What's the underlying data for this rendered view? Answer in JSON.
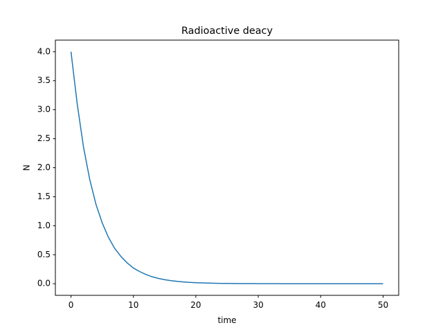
{
  "chart_data": {
    "type": "line",
    "title": "Radioactive deacy",
    "xlabel": "time",
    "ylabel": "N",
    "xlim": [
      -2.5,
      52.5
    ],
    "ylim": [
      -0.2,
      4.2
    ],
    "xticks": [
      0,
      10,
      20,
      30,
      40,
      50
    ],
    "xtick_labels": [
      "0",
      "10",
      "20",
      "30",
      "40",
      "50"
    ],
    "yticks": [
      0.0,
      0.5,
      1.0,
      1.5,
      2.0,
      2.5,
      3.0,
      3.5,
      4.0
    ],
    "ytick_labels": [
      "0.0",
      "0.5",
      "1.0",
      "1.5",
      "2.0",
      "2.5",
      "3.0",
      "3.5",
      "4.0"
    ],
    "grid": false,
    "series": [
      {
        "color": "#1f77b4",
        "x": [
          0,
          1,
          2,
          3,
          4,
          5,
          6,
          7,
          8,
          9,
          10,
          11,
          12,
          13,
          14,
          15,
          16,
          17,
          18,
          19,
          20,
          21,
          22,
          23,
          24,
          25,
          26,
          27,
          28,
          29,
          30,
          31,
          32,
          33,
          34,
          35,
          36,
          37,
          38,
          39,
          40,
          41,
          42,
          43,
          44,
          45,
          46,
          47,
          48,
          49,
          50
        ],
        "y": [
          4.0,
          3.1,
          2.36,
          1.8,
          1.37,
          1.05,
          0.8,
          0.61,
          0.47,
          0.36,
          0.27,
          0.21,
          0.16,
          0.12,
          0.092,
          0.07,
          0.054,
          0.041,
          0.031,
          0.024,
          0.018,
          0.014,
          0.011,
          0.008,
          0.006,
          0.005,
          0.004,
          0.003,
          0.002,
          0.002,
          0.001,
          0.001,
          0.001,
          0.001,
          0.0,
          0.0,
          0.0,
          0.0,
          0.0,
          0.0,
          0.0,
          0.0,
          0.0,
          0.0,
          0.0,
          0.0,
          0.0,
          0.0,
          0.0,
          0.0,
          0.0
        ]
      }
    ]
  }
}
